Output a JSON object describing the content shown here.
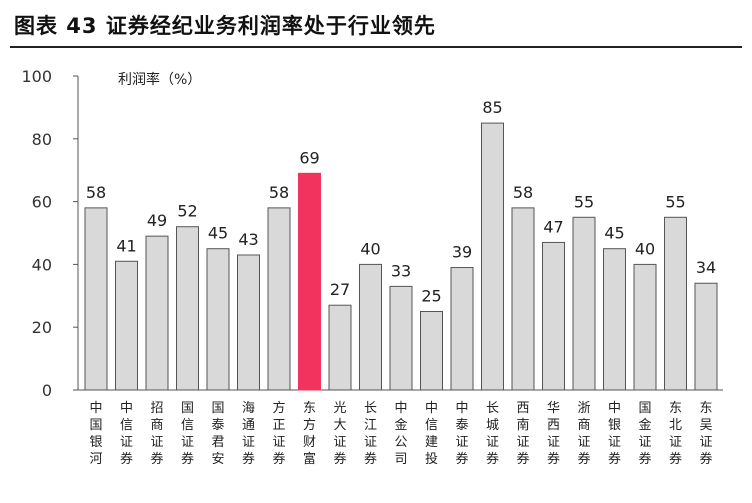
{
  "header": {
    "title": "图表 43  证券经纪业务利润率处于行业领先"
  },
  "chart_data": {
    "type": "bar",
    "title": "图表 43  证券经纪业务利润率处于行业领先",
    "legend_label": "利润率（%）",
    "categories": [
      "中国银河",
      "中信证券",
      "招商证券",
      "国信证券",
      "国泰君安",
      "海通证券",
      "方正证券",
      "东方财富",
      "光大证券",
      "长江证券",
      "中金公司",
      "中信建投",
      "中泰证券",
      "长城证券",
      "西南证券",
      "华西证券",
      "浙商证券",
      "中银证券",
      "国金证券",
      "东北证券",
      "东吴证券"
    ],
    "values": [
      58,
      41,
      49,
      52,
      45,
      43,
      58,
      69,
      27,
      40,
      33,
      25,
      39,
      85,
      58,
      47,
      55,
      45,
      40,
      55,
      34
    ],
    "highlight_index": 7,
    "ylim": [
      0,
      100
    ],
    "yticks": [
      0,
      20,
      40,
      60,
      80,
      100
    ],
    "colors": {
      "bar_fill": "#d9d9d9",
      "bar_stroke": "#555555",
      "highlight_fill": "#f2335e",
      "axis": "#555555"
    }
  }
}
